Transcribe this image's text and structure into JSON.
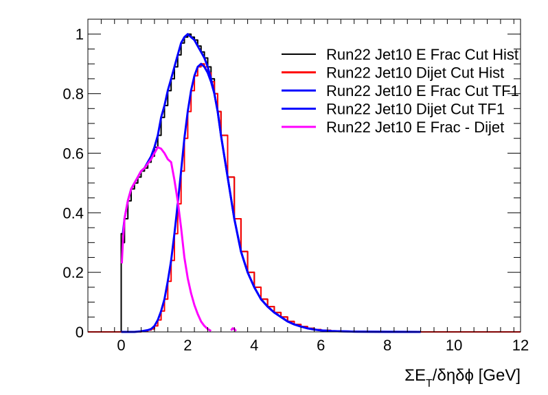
{
  "chart_data": {
    "type": "line",
    "title": "",
    "xlabel": "ΣE_T/δηδϕ [GeV]",
    "ylabel": "",
    "xlim": [
      -1,
      12
    ],
    "ylim": [
      0,
      1.05
    ],
    "xticks": [
      0,
      2,
      4,
      6,
      8,
      10,
      12
    ],
    "yticks": [
      0,
      0.2,
      0.4,
      0.6,
      0.8,
      1
    ],
    "grid": false,
    "legend_position": "top-right",
    "legend": [
      {
        "label": "Run22 Jet10 E Frac Cut Hist",
        "color": "#000000"
      },
      {
        "label": "Run22 Jet10 Dijet Cut Hist",
        "color": "#ff0000"
      },
      {
        "label": "Run22 Jet10 E Frac Cut TF1",
        "color": "#0000ff"
      },
      {
        "label": "Run22 Jet10 Dijet Cut TF1",
        "color": "#0000ff"
      },
      {
        "label": "Run22 Jet10 E Frac - Dijet",
        "color": "#ff00ff"
      }
    ],
    "series": [
      {
        "name": "Run22 Jet10 E Frac Cut Hist",
        "color": "#000000",
        "style": "step",
        "x": [
          -1,
          0,
          0.05,
          0.1,
          0.2,
          0.3,
          0.4,
          0.5,
          0.6,
          0.7,
          0.8,
          0.9,
          1.0,
          1.1,
          1.2,
          1.3,
          1.4,
          1.5,
          1.6,
          1.7,
          1.8,
          1.9,
          2.0,
          2.1,
          2.2,
          2.3,
          2.4,
          2.5,
          2.6,
          2.7,
          2.8,
          2.9,
          3.0,
          3.2,
          3.4,
          3.6,
          3.8,
          4.0,
          4.2,
          4.4,
          4.6,
          4.8,
          5.0,
          5.2,
          5.4,
          5.6,
          5.8,
          6.0,
          6.3,
          6.6,
          7.0,
          7.5,
          8.0,
          9.0
        ],
        "y": [
          0,
          0.33,
          0.3,
          0.38,
          0.44,
          0.48,
          0.5,
          0.52,
          0.54,
          0.55,
          0.57,
          0.59,
          0.62,
          0.66,
          0.72,
          0.76,
          0.81,
          0.85,
          0.89,
          0.93,
          0.97,
          0.99,
          1.0,
          0.99,
          0.98,
          0.96,
          0.94,
          0.92,
          0.89,
          0.85,
          0.8,
          0.74,
          0.66,
          0.52,
          0.38,
          0.27,
          0.2,
          0.15,
          0.11,
          0.085,
          0.065,
          0.05,
          0.035,
          0.025,
          0.018,
          0.012,
          0.008,
          0.005,
          0.003,
          0.002,
          0.001,
          0.0005,
          0.0002,
          0
        ]
      },
      {
        "name": "Run22 Jet10 Dijet Cut Hist",
        "color": "#ff0000",
        "style": "step",
        "x": [
          -1,
          0,
          0.2,
          0.4,
          0.6,
          0.8,
          0.9,
          1.0,
          1.1,
          1.2,
          1.3,
          1.4,
          1.5,
          1.6,
          1.7,
          1.8,
          1.9,
          2.0,
          2.1,
          2.2,
          2.3,
          2.4,
          2.5,
          2.6,
          2.7,
          2.8,
          2.9,
          3.0,
          3.2,
          3.4,
          3.6,
          3.8,
          4.0,
          4.2,
          4.4,
          4.6,
          4.8,
          5.0,
          5.2,
          5.4,
          5.6,
          5.8,
          6.0,
          6.3,
          6.6,
          7.0,
          7.5,
          8.0,
          9.0,
          12.0
        ],
        "y": [
          0,
          0,
          0,
          0,
          0.002,
          0.006,
          0.01,
          0.02,
          0.04,
          0.07,
          0.11,
          0.17,
          0.24,
          0.33,
          0.43,
          0.54,
          0.65,
          0.74,
          0.81,
          0.86,
          0.89,
          0.9,
          0.89,
          0.87,
          0.84,
          0.8,
          0.74,
          0.66,
          0.52,
          0.38,
          0.27,
          0.2,
          0.15,
          0.11,
          0.085,
          0.065,
          0.05,
          0.035,
          0.025,
          0.018,
          0.012,
          0.008,
          0.005,
          0.003,
          0.002,
          0.001,
          0.0005,
          0.0002,
          0,
          0
        ]
      },
      {
        "name": "Run22 Jet10 E Frac Cut TF1",
        "color": "#0000ff",
        "style": "smooth",
        "x": [
          0.05,
          0.1,
          0.2,
          0.3,
          0.4,
          0.5,
          0.6,
          0.7,
          0.8,
          0.9,
          1.0,
          1.1,
          1.2,
          1.3,
          1.4,
          1.5,
          1.6,
          1.7,
          1.8,
          1.9,
          2.0,
          2.1,
          2.2,
          2.3,
          2.4,
          2.5,
          2.6,
          2.7,
          2.8,
          2.9,
          3.0,
          3.2,
          3.4,
          3.6,
          3.8,
          4.0,
          4.2,
          4.4,
          4.6,
          4.8,
          5.0,
          5.2,
          5.4,
          5.6,
          5.8,
          6.0,
          6.3,
          6.6,
          7.0,
          7.5,
          8.0,
          9.0
        ],
        "y": [
          0.33,
          0.38,
          0.44,
          0.48,
          0.5,
          0.52,
          0.54,
          0.55,
          0.57,
          0.59,
          0.62,
          0.66,
          0.72,
          0.76,
          0.81,
          0.85,
          0.89,
          0.93,
          0.97,
          0.99,
          1.0,
          0.99,
          0.98,
          0.96,
          0.94,
          0.92,
          0.89,
          0.85,
          0.8,
          0.74,
          0.66,
          0.52,
          0.38,
          0.27,
          0.2,
          0.15,
          0.11,
          0.085,
          0.065,
          0.05,
          0.035,
          0.025,
          0.018,
          0.012,
          0.008,
          0.005,
          0.003,
          0.002,
          0.001,
          0.0005,
          0.0002,
          0
        ]
      },
      {
        "name": "Run22 Jet10 Dijet Cut TF1",
        "color": "#0000ff",
        "style": "smooth",
        "x": [
          0,
          0.2,
          0.4,
          0.6,
          0.8,
          0.9,
          1.0,
          1.1,
          1.2,
          1.3,
          1.4,
          1.5,
          1.6,
          1.7,
          1.8,
          1.9,
          2.0,
          2.1,
          2.2,
          2.3,
          2.4,
          2.5,
          2.6,
          2.7,
          2.8,
          2.9,
          3.0,
          3.2,
          3.4,
          3.6,
          3.8,
          4.0,
          4.2,
          4.4,
          4.6,
          4.8,
          5.0,
          5.2,
          5.4,
          5.6,
          5.8,
          6.0,
          6.3,
          6.6,
          7.0,
          7.5,
          8.0,
          9.0
        ],
        "y": [
          0,
          0,
          0,
          0.002,
          0.006,
          0.01,
          0.02,
          0.04,
          0.07,
          0.11,
          0.17,
          0.24,
          0.33,
          0.43,
          0.54,
          0.65,
          0.74,
          0.81,
          0.86,
          0.89,
          0.9,
          0.89,
          0.87,
          0.84,
          0.8,
          0.74,
          0.66,
          0.52,
          0.38,
          0.27,
          0.2,
          0.15,
          0.11,
          0.085,
          0.065,
          0.05,
          0.035,
          0.025,
          0.018,
          0.012,
          0.008,
          0.005,
          0.003,
          0.002,
          0.001,
          0.0005,
          0.0002,
          0
        ]
      },
      {
        "name": "Run22 Jet10 E Frac - Dijet",
        "color": "#ff00ff",
        "style": "smooth",
        "x": [
          0.02,
          0.05,
          0.1,
          0.2,
          0.3,
          0.4,
          0.5,
          0.6,
          0.7,
          0.8,
          0.9,
          1.0,
          1.1,
          1.2,
          1.3,
          1.4,
          1.5,
          1.6,
          1.7,
          1.8,
          1.9,
          2.0,
          2.1,
          2.2,
          2.3,
          2.4,
          2.5,
          2.6,
          2.7
        ],
        "y": [
          0.23,
          0.3,
          0.38,
          0.44,
          0.48,
          0.5,
          0.52,
          0.54,
          0.55,
          0.565,
          0.58,
          0.6,
          0.62,
          0.615,
          0.6,
          0.58,
          0.57,
          0.51,
          0.44,
          0.35,
          0.25,
          0.18,
          0.13,
          0.09,
          0.06,
          0.035,
          0.02,
          0.01,
          0.003
        ]
      },
      {
        "name": "",
        "color": "#ff00ff",
        "style": "smooth",
        "x": [
          3.3,
          3.35,
          3.4,
          3.45
        ],
        "y": [
          0.005,
          0.012,
          0.01,
          0.003
        ]
      }
    ]
  }
}
